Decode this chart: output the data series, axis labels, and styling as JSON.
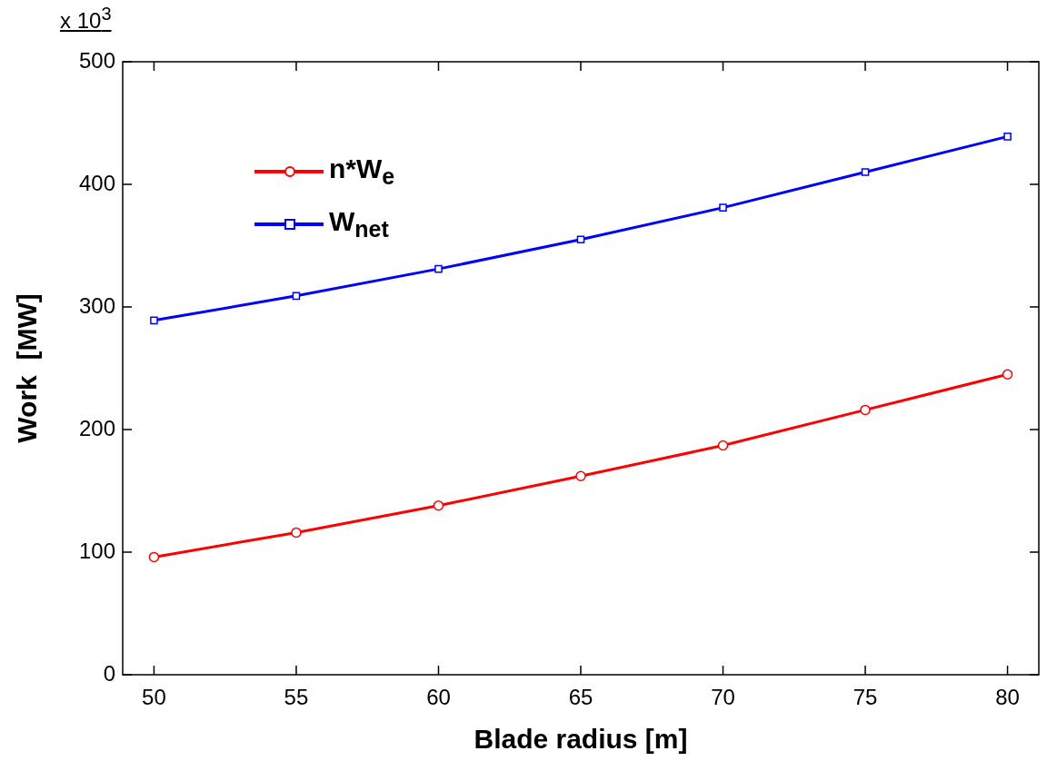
{
  "chart_data": {
    "type": "line",
    "xlabel": "Blade radius [m]",
    "ylabel": "Work  [MW]",
    "annotations": [
      "x 10$^{3}$"
    ],
    "x": [
      50,
      55,
      60,
      65,
      70,
      75,
      80
    ],
    "series": [
      {
        "name": "n*W$_{e}$",
        "color": "#ff0000",
        "marker": "circle",
        "values": [
          96,
          116,
          138,
          162,
          187,
          216,
          245
        ]
      },
      {
        "name": "W$_{net}$",
        "color": "#0000ff",
        "marker": "square",
        "values": [
          289,
          309,
          331,
          355,
          381,
          410,
          439
        ]
      }
    ],
    "xlim": [
      48.9,
      81.1
    ],
    "xticks": [
      50,
      55,
      60,
      65,
      70,
      75,
      80
    ],
    "ylim": [
      0,
      500
    ],
    "yticks": [
      0,
      100,
      200,
      300,
      400,
      500
    ],
    "grid": false,
    "legend": "top left",
    "line_style": "solid"
  }
}
